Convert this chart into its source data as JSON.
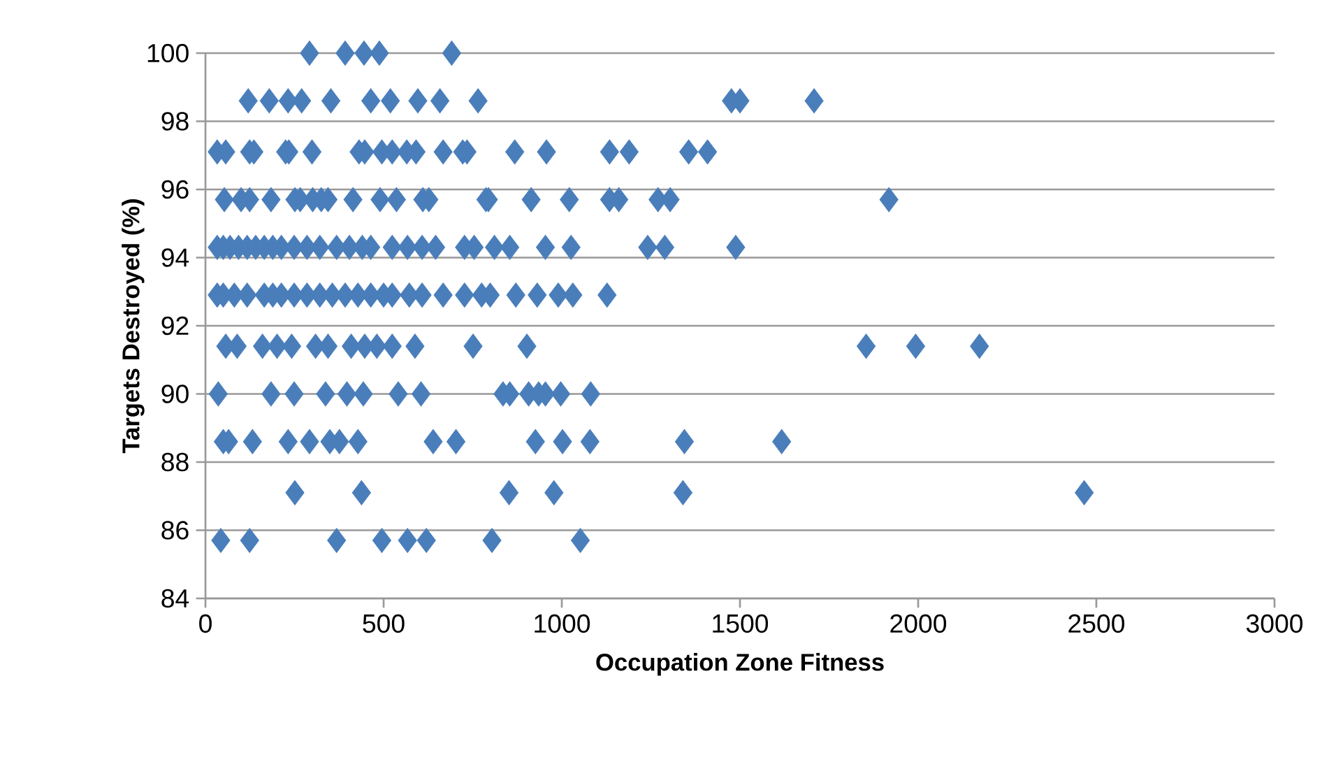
{
  "chart_data": {
    "type": "scatter",
    "xlabel": "Occupation Zone Fitness",
    "ylabel": "Targets Destroyed (%)",
    "xlim": [
      0,
      3000
    ],
    "xticks": [
      0,
      500,
      1000,
      1500,
      2000,
      2500,
      3000
    ],
    "ylim": [
      84,
      100
    ],
    "yticks": [
      84,
      86,
      88,
      90,
      92,
      94,
      96,
      98,
      100
    ],
    "grid": "y",
    "marker": "diamond",
    "series": [
      {
        "color": "#4a7ebb",
        "x": [
          292,
          392,
          445,
          488,
          691,
          120,
          179,
          232,
          270,
          352,
          464,
          519,
          596,
          658,
          765,
          1476,
          1500,
          1708,
          33,
          57,
          124,
          136,
          225,
          234,
          299,
          431,
          447,
          495,
          524,
          565,
          591,
          667,
          722,
          734,
          868,
          957,
          1134,
          1189,
          1356,
          1409,
          53,
          100,
          124,
          184,
          251,
          266,
          301,
          325,
          344,
          414,
          490,
          536,
          610,
          627,
          787,
          794,
          914,
          1021,
          1134,
          1160,
          1270,
          1304,
          1918,
          33,
          50,
          69,
          93,
          117,
          141,
          165,
          189,
          213,
          249,
          285,
          321,
          368,
          404,
          440,
          464,
          524,
          567,
          608,
          646,
          727,
          754,
          811,
          854,
          954,
          1026,
          1241,
          1289,
          1488,
          33,
          50,
          81,
          117,
          165,
          189,
          213,
          249,
          285,
          321,
          356,
          392,
          428,
          464,
          500,
          524,
          572,
          608,
          667,
          727,
          775,
          799,
          871,
          931,
          990,
          1031,
          1127,
          57,
          89,
          160,
          201,
          242,
          309,
          344,
          409,
          447,
          481,
          524,
          588,
          751,
          902,
          1854,
          1993,
          2172,
          36,
          184,
          249,
          337,
          397,
          443,
          541,
          605,
          835,
          854,
          907,
          935,
          954,
          997,
          1081,
          50,
          65,
          132,
          232,
          292,
          349,
          376,
          428,
          639,
          703,
          926,
          1002,
          1079,
          1344,
          1617,
          251,
          438,
          852,
          978,
          1340,
          2466,
          43,
          124,
          368,
          495,
          567,
          620,
          804,
          1052
        ],
        "values": [
          100,
          100,
          100,
          100,
          100,
          98.6,
          98.6,
          98.6,
          98.6,
          98.6,
          98.6,
          98.6,
          98.6,
          98.6,
          98.6,
          98.6,
          98.6,
          98.6,
          97.1,
          97.1,
          97.1,
          97.1,
          97.1,
          97.1,
          97.1,
          97.1,
          97.1,
          97.1,
          97.1,
          97.1,
          97.1,
          97.1,
          97.1,
          97.1,
          97.1,
          97.1,
          97.1,
          97.1,
          97.1,
          97.1,
          95.7,
          95.7,
          95.7,
          95.7,
          95.7,
          95.7,
          95.7,
          95.7,
          95.7,
          95.7,
          95.7,
          95.7,
          95.7,
          95.7,
          95.7,
          95.7,
          95.7,
          95.7,
          95.7,
          95.7,
          95.7,
          95.7,
          95.7,
          94.3,
          94.3,
          94.3,
          94.3,
          94.3,
          94.3,
          94.3,
          94.3,
          94.3,
          94.3,
          94.3,
          94.3,
          94.3,
          94.3,
          94.3,
          94.3,
          94.3,
          94.3,
          94.3,
          94.3,
          94.3,
          94.3,
          94.3,
          94.3,
          94.3,
          94.3,
          94.3,
          94.3,
          94.3,
          92.9,
          92.9,
          92.9,
          92.9,
          92.9,
          92.9,
          92.9,
          92.9,
          92.9,
          92.9,
          92.9,
          92.9,
          92.9,
          92.9,
          92.9,
          92.9,
          92.9,
          92.9,
          92.9,
          92.9,
          92.9,
          92.9,
          92.9,
          92.9,
          92.9,
          92.9,
          92.9,
          91.4,
          91.4,
          91.4,
          91.4,
          91.4,
          91.4,
          91.4,
          91.4,
          91.4,
          91.4,
          91.4,
          91.4,
          91.4,
          91.4,
          91.4,
          91.4,
          91.4,
          90,
          90,
          90,
          90,
          90,
          90,
          90,
          90,
          90,
          90,
          90,
          90,
          90,
          90,
          90,
          88.6,
          88.6,
          88.6,
          88.6,
          88.6,
          88.6,
          88.6,
          88.6,
          88.6,
          88.6,
          88.6,
          88.6,
          88.6,
          88.6,
          88.6,
          87.1,
          87.1,
          87.1,
          87.1,
          87.1,
          87.1,
          85.7,
          85.7,
          85.7,
          85.7,
          85.7,
          85.7,
          85.7,
          85.7
        ]
      }
    ]
  }
}
